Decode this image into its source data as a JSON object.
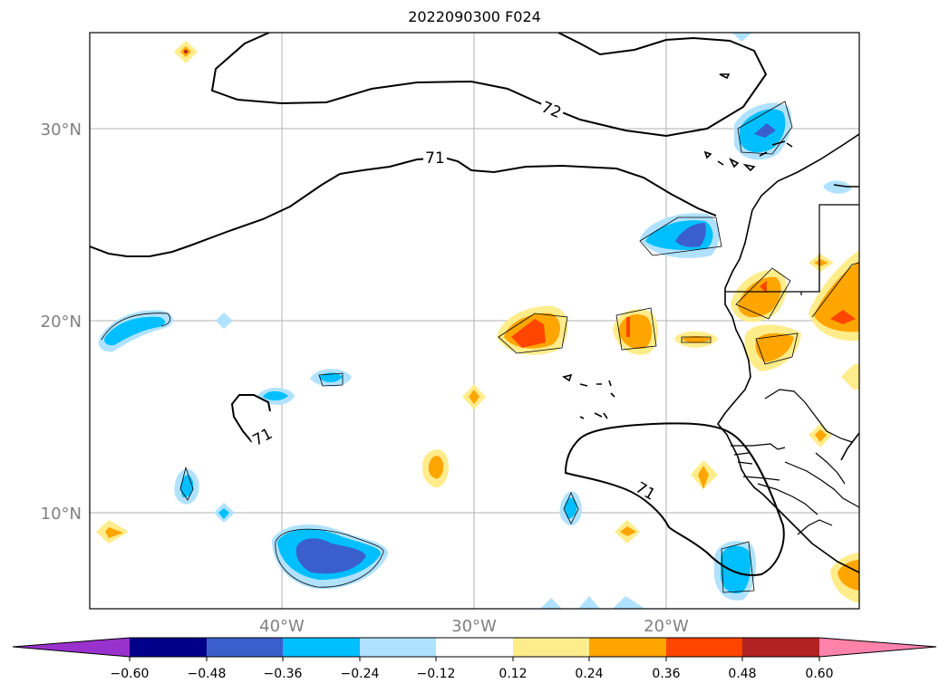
{
  "title": "2022090300 F024",
  "map": {
    "lon_range": [
      -50,
      -10
    ],
    "lat_range": [
      5,
      35
    ],
    "lat_ticks": [
      {
        "value": 30,
        "label": "30°N"
      },
      {
        "value": 20,
        "label": "20°N"
      },
      {
        "value": 10,
        "label": "10°N"
      }
    ],
    "lon_ticks": [
      {
        "value": -40,
        "label": "40°W"
      },
      {
        "value": -30,
        "label": "30°W"
      },
      {
        "value": -20,
        "label": "20°W"
      }
    ],
    "gridlines": true,
    "contour_labels": [
      "72",
      "71",
      "71",
      "71"
    ]
  },
  "colorbar": {
    "levels": [
      "−0.60",
      "−0.48",
      "−0.36",
      "−0.24",
      "−0.12",
      "0.12",
      "0.24",
      "0.36",
      "0.48",
      "0.60"
    ],
    "colors": [
      "#9932cc",
      "#00008b",
      "#3a5fcd",
      "#00bfff",
      "#b0e2ff",
      "#ffffff",
      "#ffec8b",
      "#ffa500",
      "#ff4500",
      "#b22222",
      "#ff82ab"
    ],
    "extend": "both"
  },
  "fill_colors": {
    "light_blue": "#b0e2ff",
    "deep_sky_blue": "#00bfff",
    "royal_blue": "#3a5fcd",
    "khaki": "#ffec8b",
    "orange": "#ffa500",
    "orange_red": "#ff4500"
  }
}
